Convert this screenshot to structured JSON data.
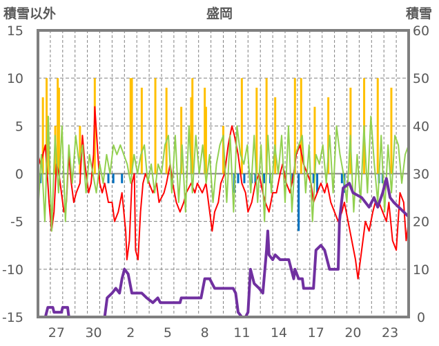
{
  "chart_data": {
    "type": "line",
    "title": "盛岡",
    "ylabel_left": "積雪以外",
    "ylabel_right": "積雪",
    "xlim_days": [
      0,
      30
    ],
    "ylim_left": [
      -15,
      15
    ],
    "ylim_right": [
      0,
      60
    ],
    "yticks_left": [
      "15",
      "10",
      "5",
      "0",
      "-5",
      "-10",
      "-15"
    ],
    "yticks_right": [
      "60",
      "50",
      "40",
      "30",
      "20",
      "10",
      "0"
    ],
    "xticks": [
      {
        "day": 1.5,
        "label": "27"
      },
      {
        "day": 4.5,
        "label": "30"
      },
      {
        "day": 7.5,
        "label": "2"
      },
      {
        "day": 10.5,
        "label": "5"
      },
      {
        "day": 13.5,
        "label": "8"
      },
      {
        "day": 16.5,
        "label": "11"
      },
      {
        "day": 19.5,
        "label": "14"
      },
      {
        "day": 22.5,
        "label": "17"
      },
      {
        "day": 25.5,
        "label": "20"
      },
      {
        "day": 28.5,
        "label": "23"
      }
    ],
    "grid": true,
    "colors": {
      "red": "#ff0000",
      "green": "#92d050",
      "orange": "#ffc000",
      "blue": "#0070c0",
      "purple": "#7030a0",
      "grid": "#7f7f7f"
    },
    "series": [
      {
        "name": "red",
        "axis": "left",
        "points": [
          [
            0,
            2
          ],
          [
            0.2,
            1
          ],
          [
            0.4,
            2
          ],
          [
            0.6,
            3
          ],
          [
            0.7,
            1
          ],
          [
            0.9,
            -3
          ],
          [
            1.1,
            -6
          ],
          [
            1.3,
            -4
          ],
          [
            1.5,
            1
          ],
          [
            1.7,
            0
          ],
          [
            1.9,
            -2
          ],
          [
            2.1,
            -4
          ],
          [
            2.3,
            -3
          ],
          [
            2.5,
            2
          ],
          [
            2.7,
            -1
          ],
          [
            2.9,
            -3
          ],
          [
            3.1,
            -2
          ],
          [
            3.4,
            -1
          ],
          [
            3.6,
            4
          ],
          [
            3.8,
            1
          ],
          [
            4.1,
            -2
          ],
          [
            4.3,
            -1
          ],
          [
            4.5,
            2
          ],
          [
            4.6,
            7
          ],
          [
            4.8,
            3
          ],
          [
            5,
            -1
          ],
          [
            5.2,
            -2
          ],
          [
            5.4,
            -1
          ],
          [
            5.7,
            -3
          ],
          [
            6,
            -3
          ],
          [
            6.2,
            -5
          ],
          [
            6.5,
            -4
          ],
          [
            6.8,
            -2
          ],
          [
            7.1,
            -6
          ],
          [
            7.2,
            -9
          ],
          [
            7.4,
            -7
          ],
          [
            7.6,
            -1
          ],
          [
            7.8,
            0
          ],
          [
            7.9,
            -8
          ],
          [
            8.1,
            -9
          ],
          [
            8.3,
            -4
          ],
          [
            8.5,
            -1
          ],
          [
            8.7,
            0
          ],
          [
            9,
            -1
          ],
          [
            9.3,
            -2
          ],
          [
            9.6,
            -1
          ],
          [
            9.8,
            -3
          ],
          [
            10.2,
            -2
          ],
          [
            10.4,
            -1
          ],
          [
            10.7,
            1
          ],
          [
            10.9,
            -1
          ],
          [
            11.2,
            -3
          ],
          [
            11.5,
            -4
          ],
          [
            11.8,
            -3
          ],
          [
            12,
            -2
          ],
          [
            12.4,
            -1
          ],
          [
            12.7,
            -2
          ],
          [
            12.9,
            -1
          ],
          [
            13.3,
            -2
          ],
          [
            13.6,
            -1
          ],
          [
            13.8,
            -3
          ],
          [
            14.1,
            -6
          ],
          [
            14.3,
            -4
          ],
          [
            14.6,
            -3
          ],
          [
            14.8,
            -1
          ],
          [
            15.1,
            0
          ],
          [
            15.4,
            3
          ],
          [
            15.7,
            5
          ],
          [
            15.9,
            4
          ],
          [
            16.2,
            2
          ],
          [
            16.5,
            -1
          ],
          [
            16.8,
            -2
          ],
          [
            17,
            -4
          ],
          [
            17.3,
            -3
          ],
          [
            17.6,
            -1
          ],
          [
            17.9,
            0
          ],
          [
            18.2,
            -2
          ],
          [
            18.4,
            -3
          ],
          [
            18.7,
            -4
          ],
          [
            19,
            -2
          ],
          [
            19.3,
            -2
          ],
          [
            19.6,
            0
          ],
          [
            19.8,
            1
          ],
          [
            20.1,
            -1
          ],
          [
            20.4,
            -2
          ],
          [
            20.7,
            0
          ],
          [
            20.9,
            2
          ],
          [
            21.2,
            3
          ],
          [
            21.5,
            1
          ],
          [
            21.8,
            0
          ],
          [
            22.1,
            -1
          ],
          [
            22.3,
            -3
          ],
          [
            22.6,
            -2
          ],
          [
            22.9,
            -1
          ],
          [
            23.2,
            -2
          ],
          [
            23.4,
            -1
          ],
          [
            23.7,
            -3
          ],
          [
            24,
            -4
          ],
          [
            24.3,
            -5
          ],
          [
            24.6,
            -4
          ],
          [
            24.8,
            -3
          ],
          [
            25.1,
            -5
          ],
          [
            25.4,
            -7
          ],
          [
            25.7,
            -9
          ],
          [
            25.9,
            -11
          ],
          [
            26.2,
            -8
          ],
          [
            26.5,
            -5
          ],
          [
            26.8,
            -6
          ],
          [
            27.1,
            -4
          ],
          [
            27.3,
            -3
          ],
          [
            27.6,
            -3
          ],
          [
            27.9,
            -4
          ],
          [
            28.2,
            -5
          ],
          [
            28.4,
            -3
          ],
          [
            28.7,
            -7
          ],
          [
            29,
            -8
          ],
          [
            29.3,
            -2
          ],
          [
            29.6,
            -3
          ],
          [
            29.8,
            -7
          ],
          [
            30,
            -5
          ]
        ]
      },
      {
        "name": "green",
        "axis": "left",
        "values": [
          -4,
          2,
          -5,
          6,
          -6,
          4,
          -2,
          5,
          -5,
          3,
          -1,
          4,
          1,
          3,
          -2,
          2,
          0,
          -2,
          1,
          -1,
          2,
          0,
          3,
          2,
          3,
          2,
          1,
          -1,
          2,
          0,
          2,
          3,
          -1,
          1,
          -2,
          1,
          0,
          3,
          4,
          -2,
          4,
          -3,
          3,
          -4,
          5,
          -2,
          4,
          0,
          3,
          -1,
          2,
          -3,
          1,
          3,
          4,
          -3,
          4,
          -4,
          5,
          2,
          1,
          3,
          -2,
          4,
          -3,
          3,
          -5,
          4,
          -2,
          3,
          0,
          4,
          -3,
          5,
          -4,
          2,
          3,
          4,
          -2,
          3,
          -5,
          2,
          1,
          3,
          -1,
          4,
          -2,
          5,
          2,
          0,
          -3,
          4,
          -4,
          2,
          -3,
          5,
          -2,
          6,
          1,
          -3,
          4,
          -4,
          3,
          -2,
          4,
          3,
          -1,
          2,
          3
        ]
      },
      {
        "name": "purple",
        "axis": "right",
        "points": [
          [
            0,
            0
          ],
          [
            0.6,
            0
          ],
          [
            0.8,
            2
          ],
          [
            1.2,
            2
          ],
          [
            1.3,
            1
          ],
          [
            1.9,
            1
          ],
          [
            2,
            2
          ],
          [
            2.4,
            2
          ],
          [
            2.5,
            0
          ],
          [
            5.4,
            0
          ],
          [
            5.6,
            4
          ],
          [
            6,
            5
          ],
          [
            6.3,
            6
          ],
          [
            6.6,
            5
          ],
          [
            6.8,
            8
          ],
          [
            7,
            10
          ],
          [
            7.3,
            9
          ],
          [
            7.6,
            5
          ],
          [
            8.4,
            5
          ],
          [
            8.8,
            4
          ],
          [
            9.3,
            3
          ],
          [
            9.7,
            4
          ],
          [
            9.9,
            3
          ],
          [
            11.5,
            3
          ],
          [
            11.6,
            4
          ],
          [
            13.2,
            4
          ],
          [
            13.5,
            8
          ],
          [
            13.9,
            8
          ],
          [
            14.3,
            6
          ],
          [
            15.8,
            6
          ],
          [
            16,
            5
          ],
          [
            16.2,
            1
          ],
          [
            16.5,
            0
          ],
          [
            16.8,
            0
          ],
          [
            17,
            1
          ],
          [
            17.2,
            10
          ],
          [
            17.5,
            7
          ],
          [
            17.9,
            6
          ],
          [
            18.2,
            5
          ],
          [
            18.5,
            14
          ],
          [
            18.6,
            18
          ],
          [
            18.7,
            13
          ],
          [
            19,
            12
          ],
          [
            19.2,
            13
          ],
          [
            19.6,
            12
          ],
          [
            20.3,
            12
          ],
          [
            20.5,
            10
          ],
          [
            20.7,
            8
          ],
          [
            20.8,
            10
          ],
          [
            21.1,
            8
          ],
          [
            21.4,
            8
          ],
          [
            21.5,
            6
          ],
          [
            22.3,
            6
          ],
          [
            22.5,
            14
          ],
          [
            22.9,
            15
          ],
          [
            23.2,
            14
          ],
          [
            23.6,
            10
          ],
          [
            24.3,
            10
          ],
          [
            24.4,
            20
          ],
          [
            24.7,
            27
          ],
          [
            25.2,
            28
          ],
          [
            25.5,
            26
          ],
          [
            26.2,
            25
          ],
          [
            26.8,
            23
          ],
          [
            27.2,
            25
          ],
          [
            27.5,
            23
          ],
          [
            27.9,
            26
          ],
          [
            28.2,
            29
          ],
          [
            28.5,
            25
          ],
          [
            28.8,
            24
          ],
          [
            29.2,
            23
          ],
          [
            29.6,
            22
          ],
          [
            30,
            21
          ]
        ]
      }
    ],
    "bars": [
      {
        "name": "orange",
        "axis": "left",
        "points": [
          [
            0.4,
            8
          ],
          [
            0.7,
            10
          ],
          [
            0.8,
            6
          ],
          [
            1.4,
            5
          ],
          [
            1.6,
            10
          ],
          [
            1.7,
            9
          ],
          [
            3.4,
            5
          ],
          [
            4.6,
            10
          ],
          [
            7.5,
            10
          ],
          [
            7.6,
            10
          ],
          [
            8.4,
            9
          ],
          [
            9.5,
            10
          ],
          [
            10.4,
            9
          ],
          [
            11.6,
            7
          ],
          [
            12.4,
            8
          ],
          [
            12.5,
            10
          ],
          [
            13.5,
            9
          ],
          [
            13.6,
            7
          ],
          [
            15,
            5
          ],
          [
            16.5,
            10
          ],
          [
            17.7,
            9
          ],
          [
            18.5,
            10
          ],
          [
            19.2,
            8
          ],
          [
            20.8,
            10
          ],
          [
            21.3,
            10
          ],
          [
            22.4,
            7
          ],
          [
            23.5,
            8
          ],
          [
            25.3,
            9
          ],
          [
            26.4,
            10
          ],
          [
            27.5,
            10
          ],
          [
            28.6,
            9
          ]
        ]
      },
      {
        "name": "blue",
        "axis": "left",
        "points": [
          [
            0.2,
            -1
          ],
          [
            5.7,
            -1
          ],
          [
            6.1,
            -1
          ],
          [
            6.8,
            -1
          ],
          [
            15.9,
            -2
          ],
          [
            16.2,
            -1
          ],
          [
            16.7,
            -1
          ],
          [
            17.3,
            -1
          ],
          [
            17.6,
            -1
          ],
          [
            18.3,
            -1
          ],
          [
            18.8,
            -1
          ],
          [
            20.6,
            -1
          ],
          [
            21.1,
            -6
          ],
          [
            22.3,
            -1
          ],
          [
            22.6,
            -2
          ],
          [
            24.6,
            -1
          ],
          [
            24.8,
            -2
          ],
          [
            27.6,
            -1
          ],
          [
            27.9,
            -1
          ]
        ]
      }
    ]
  }
}
